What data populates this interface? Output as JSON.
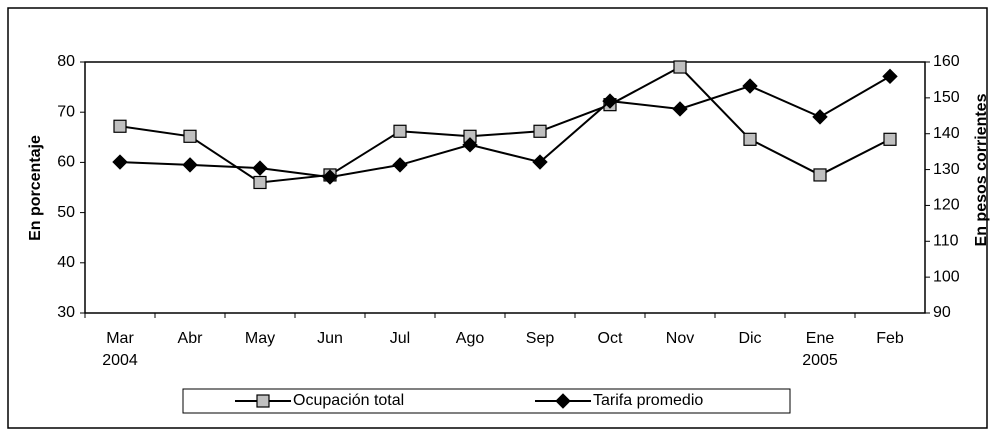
{
  "chart_data": {
    "type": "line",
    "categories": [
      "Mar 2004",
      "Abr",
      "May",
      "Jun",
      "Jul",
      "Ago",
      "Sep",
      "Oct",
      "Nov",
      "Dic",
      "Ene 2005",
      "Feb"
    ],
    "ylabel": "En porcentaje",
    "y2label": "En pesos corrientes",
    "ylim": [
      30,
      80
    ],
    "yticks": [
      30,
      40,
      50,
      60,
      70,
      80
    ],
    "y2lim": [
      90,
      160
    ],
    "y2ticks": [
      90,
      100,
      110,
      120,
      130,
      140,
      150,
      160
    ],
    "series": [
      {
        "name": "Ocupación total",
        "color": "#c0c0c0",
        "marker": "square",
        "values": [
          67.2,
          65.2,
          56,
          57.5,
          66.2,
          65.2,
          66.2,
          71.5,
          79,
          64.6,
          57.5,
          64.6
        ]
      },
      {
        "name": "Tarifa promedio",
        "color": "#000000",
        "marker": "diamond",
        "axis": "y2",
        "values": [
          132.1,
          131.3,
          130.4,
          127.9,
          131.3,
          136.9,
          132.1,
          149.1,
          146.9,
          153.3,
          144.7,
          156
        ]
      }
    ]
  }
}
